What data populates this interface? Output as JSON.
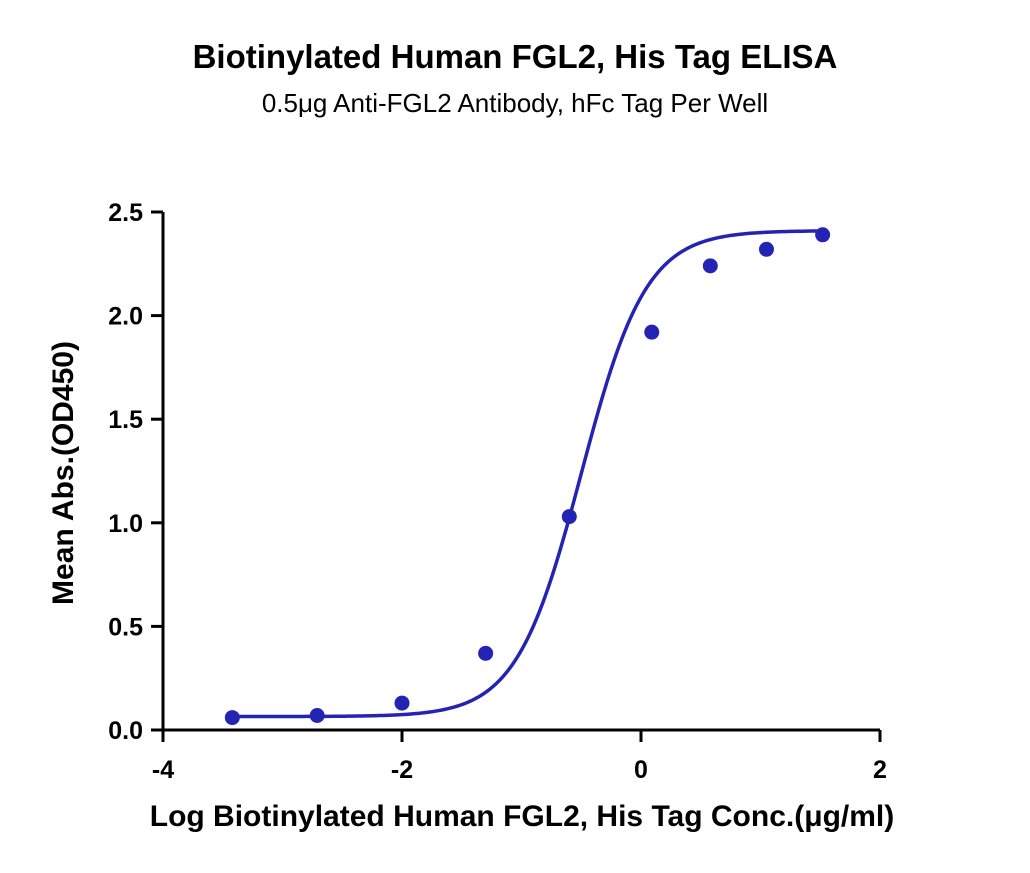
{
  "chart_data": {
    "type": "scatter",
    "title": "Biotinylated Human FGL2, His Tag ELISA",
    "subtitle": "0.5μg Anti-FGL2 Antibody, hFc Tag Per Well",
    "xlabel": "Log Biotinylated Human FGL2, His Tag Conc.(μg/ml)",
    "ylabel": "Mean Abs.(OD450)",
    "xlim": [
      -4,
      2
    ],
    "ylim": [
      0,
      2.5
    ],
    "xticks": [
      -4,
      -2,
      0,
      2
    ],
    "xtick_labels": [
      "-4",
      "-2",
      "0",
      "2"
    ],
    "yticks": [
      0,
      0.5,
      1.0,
      1.5,
      2.0,
      2.5
    ],
    "ytick_labels": [
      "0.0",
      "0.5",
      "1.0",
      "1.5",
      "2.0",
      "2.5"
    ],
    "grid": false,
    "color": "#2424b4",
    "series": [
      {
        "x": [
          -3.42,
          -2.71,
          -2.0,
          -1.3,
          -0.6,
          0.09,
          0.58,
          1.05,
          1.52
        ],
        "y": [
          0.06,
          0.07,
          0.13,
          0.37,
          1.03,
          1.92,
          2.24,
          2.32,
          2.39
        ],
        "fit": {
          "model": "4PL",
          "bottom": 0.065,
          "top": 2.41,
          "logEC50": -0.5,
          "hill": 1.6
        }
      }
    ]
  }
}
